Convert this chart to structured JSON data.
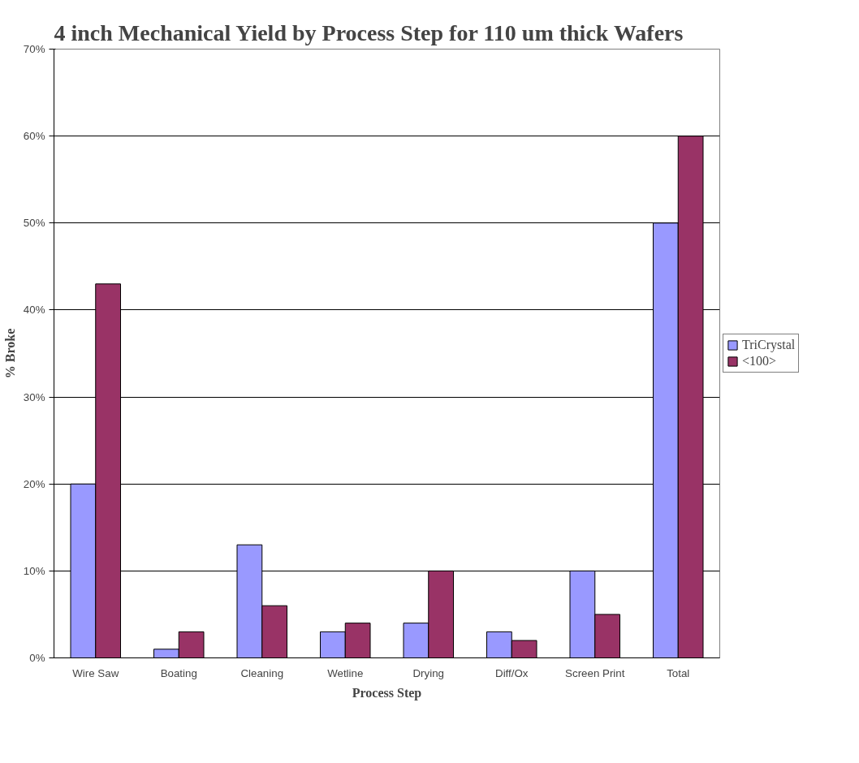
{
  "chart_data": {
    "type": "bar",
    "title": "4 inch Mechanical Yield by Process Step for 110 um thick Wafers",
    "xlabel": "Process Step",
    "ylabel": "% Broke",
    "categories": [
      "Wire Saw",
      "Boating",
      "Cleaning",
      "Wetline",
      "Drying",
      "Diff/Ox",
      "Screen Print",
      "Total"
    ],
    "series": [
      {
        "name": "TriCrystal",
        "color": "#9999ff",
        "values": [
          20,
          1,
          13,
          3,
          4,
          3,
          10,
          50
        ]
      },
      {
        "name": "<100>",
        "color": "#993366",
        "values": [
          43,
          3,
          6,
          4,
          10,
          2,
          5,
          60
        ]
      }
    ],
    "ylim": [
      0,
      70
    ],
    "yticks": [
      {
        "value": 0,
        "label": "0%"
      },
      {
        "value": 10,
        "label": "10%"
      },
      {
        "value": 20,
        "label": "20%"
      },
      {
        "value": 30,
        "label": "30%"
      },
      {
        "value": 40,
        "label": "40%"
      },
      {
        "value": 50,
        "label": "50%"
      },
      {
        "value": 60,
        "label": "60%"
      },
      {
        "value": 70,
        "label": "70%"
      }
    ],
    "grid": "y",
    "legend": "right"
  }
}
